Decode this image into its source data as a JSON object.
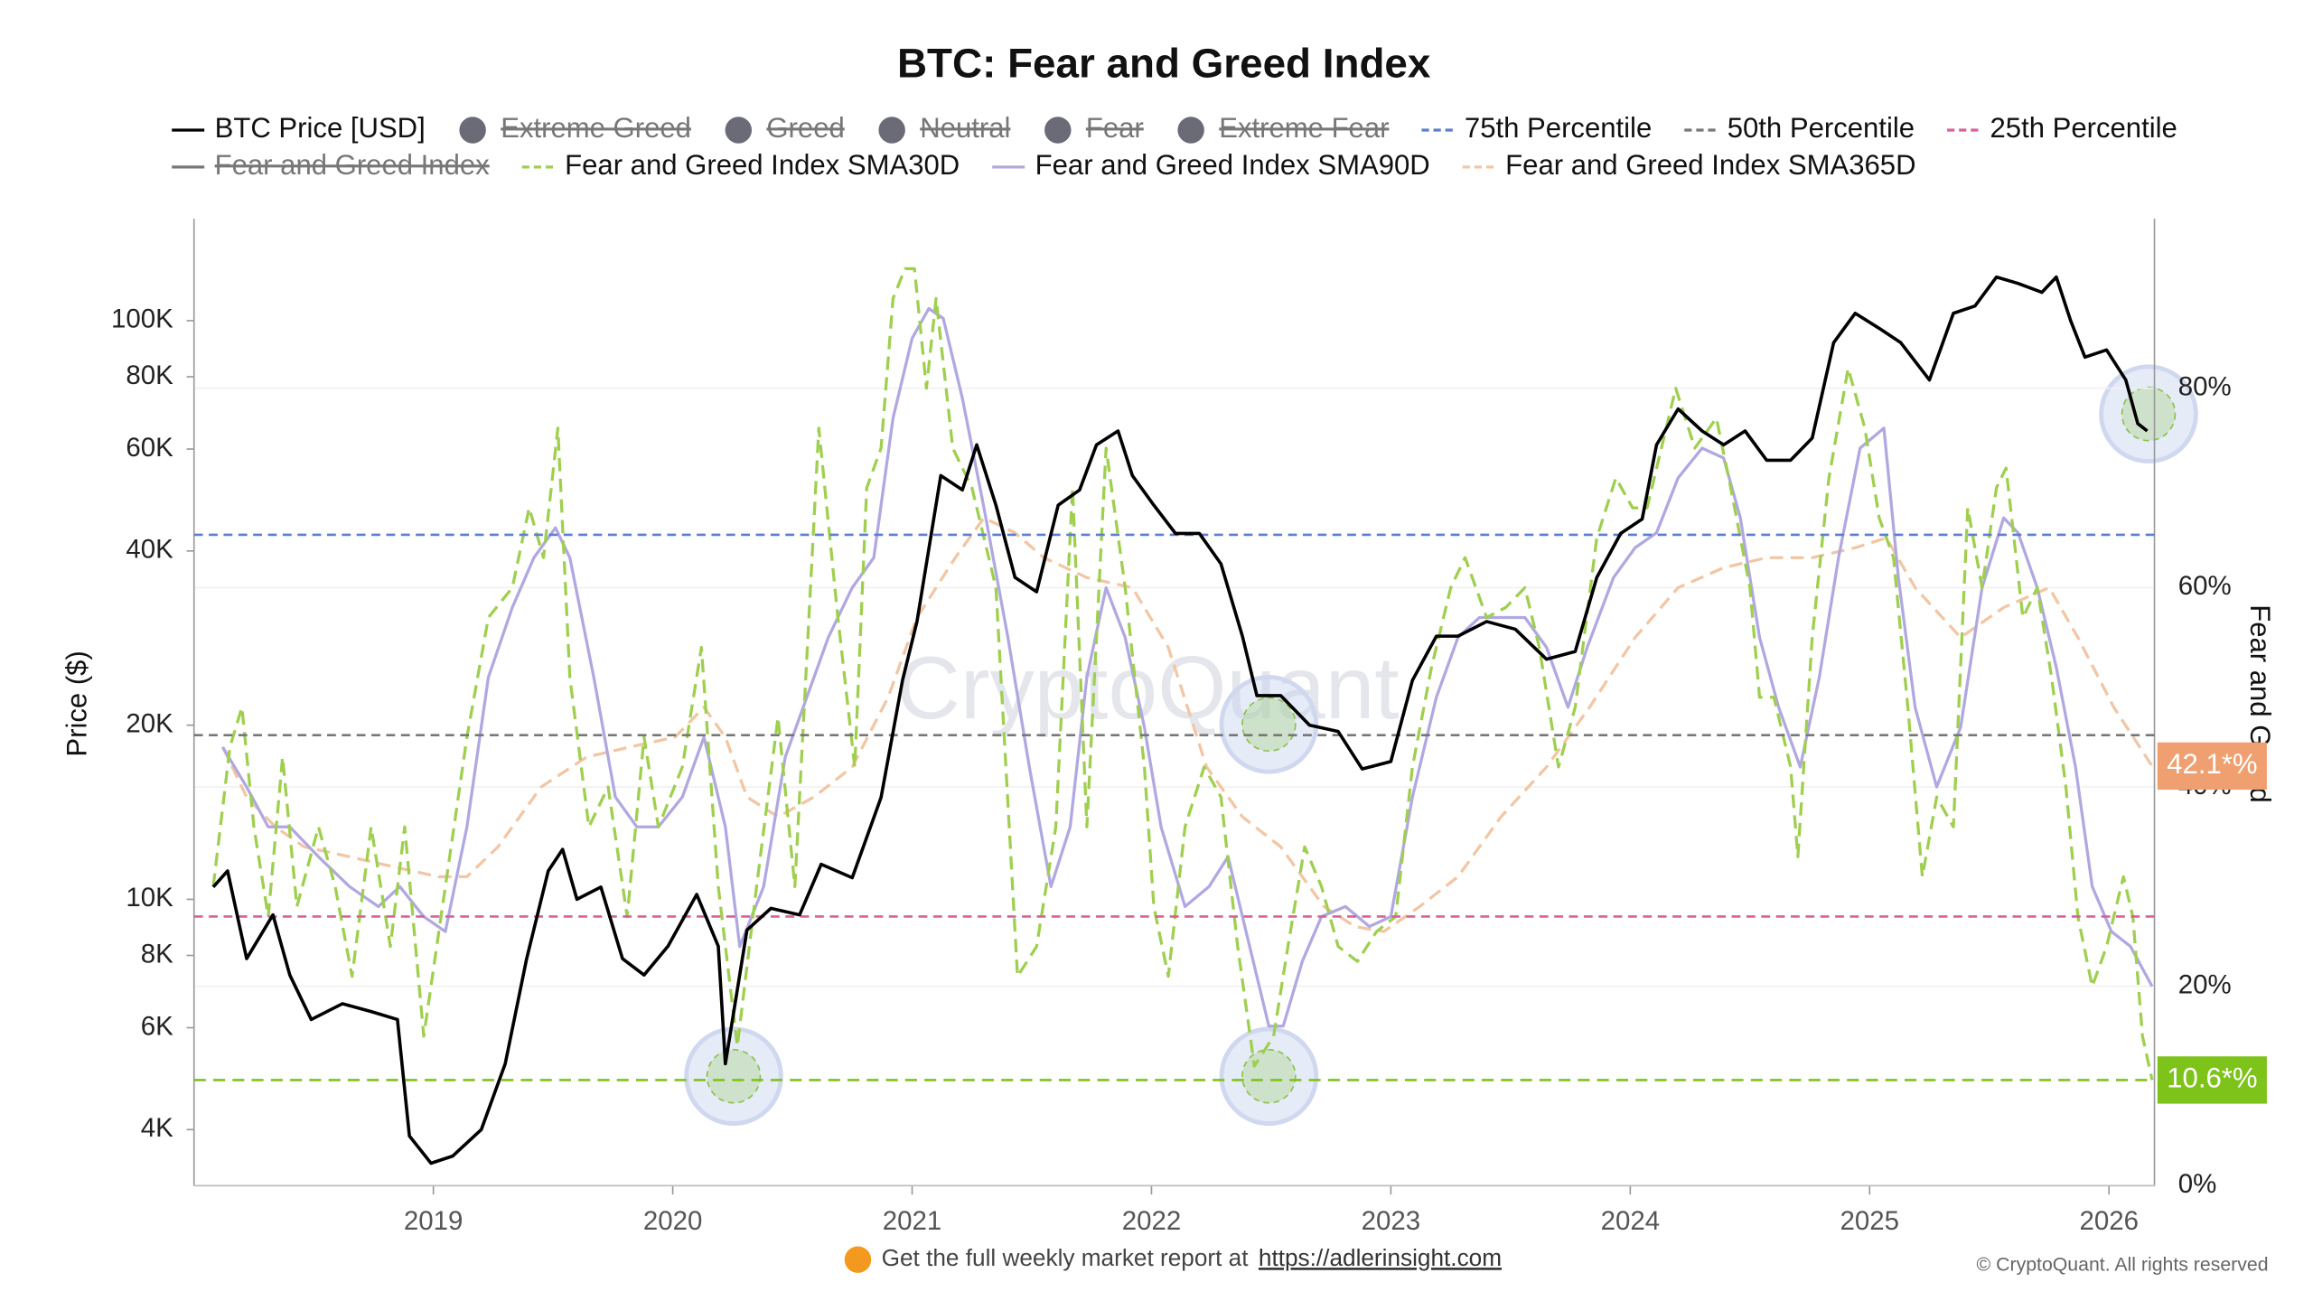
{
  "chart_data": {
    "type": "line",
    "title": "BTC: Fear and Greed Index",
    "y_label": "Price ($)",
    "y2_label": "Fear and Greed",
    "log_y": true,
    "xlim": [
      2018.0,
      2026.19
    ],
    "ylim": [
      3200,
      150000
    ],
    "y2lim": [
      0,
      97
    ],
    "xticks": [
      2019,
      2020,
      2021,
      2022,
      2023,
      2024,
      2025,
      2026
    ],
    "yticks": [
      {
        "value": 4000,
        "label": "4K"
      },
      {
        "value": 6000,
        "label": "6K"
      },
      {
        "value": 8000,
        "label": "8K"
      },
      {
        "value": 10000,
        "label": "10K"
      },
      {
        "value": 20000,
        "label": "20K"
      },
      {
        "value": 40000,
        "label": "40K"
      },
      {
        "value": 60000,
        "label": "60K"
      },
      {
        "value": 80000,
        "label": "80K"
      },
      {
        "value": 100000,
        "label": "100K"
      }
    ],
    "y2ticks": [
      {
        "value": 0,
        "label": "0%"
      },
      {
        "value": 20,
        "label": "20%"
      },
      {
        "value": 40,
        "label": "40%"
      },
      {
        "value": 60,
        "label": "60%"
      },
      {
        "value": 80,
        "label": "80%"
      }
    ],
    "grid": true,
    "series": [
      {
        "name": "BTC Price [USD]",
        "color": "#000000",
        "kind": "line",
        "axis": "y",
        "x": [
          2018.08,
          2018.14,
          2018.22,
          2018.33,
          2018.4,
          2018.49,
          2018.62,
          2018.74,
          2018.85,
          2018.9,
          2018.99,
          2019.08,
          2019.2,
          2019.3,
          2019.39,
          2019.48,
          2019.54,
          2019.6,
          2019.7,
          2019.79,
          2019.88,
          2019.98,
          2020.1,
          2020.19,
          2020.22,
          2020.31,
          2020.41,
          2020.53,
          2020.62,
          2020.75,
          2020.87,
          2020.96,
          2021.02,
          2021.12,
          2021.21,
          2021.27,
          2021.35,
          2021.43,
          2021.52,
          2021.61,
          2021.7,
          2021.77,
          2021.86,
          2021.92,
          2022.01,
          2022.1,
          2022.2,
          2022.29,
          2022.38,
          2022.44,
          2022.54,
          2022.66,
          2022.78,
          2022.88,
          2023.0,
          2023.09,
          2023.19,
          2023.28,
          2023.4,
          2023.52,
          2023.65,
          2023.77,
          2023.86,
          2023.96,
          2024.05,
          2024.11,
          2024.2,
          2024.3,
          2024.39,
          2024.48,
          2024.57,
          2024.67,
          2024.76,
          2024.85,
          2024.94,
          2025.04,
          2025.13,
          2025.25,
          2025.35,
          2025.44,
          2025.53,
          2025.62,
          2025.72,
          2025.78,
          2025.84,
          2025.9,
          2025.99,
          2026.07,
          2026.12,
          2026.16
        ],
        "values": [
          10500,
          11200,
          7900,
          9400,
          7400,
          6200,
          6600,
          6400,
          6200,
          3900,
          3500,
          3600,
          4000,
          5200,
          7900,
          11200,
          12200,
          10000,
          10500,
          7900,
          7400,
          8300,
          10200,
          8300,
          5200,
          8850,
          9650,
          9400,
          11500,
          10900,
          15000,
          23900,
          30200,
          54000,
          51000,
          61000,
          48000,
          36000,
          34000,
          48000,
          51000,
          61000,
          64500,
          54000,
          48000,
          42900,
          42900,
          38000,
          28500,
          22500,
          22500,
          20000,
          19500,
          16800,
          17300,
          23900,
          28500,
          28500,
          30200,
          29300,
          26000,
          26800,
          36000,
          42900,
          45400,
          61000,
          70400,
          64500,
          61000,
          64500,
          57400,
          57400,
          62700,
          91600,
          103000,
          97000,
          91600,
          79000,
          103000,
          106000,
          119000,
          116000,
          112000,
          119000,
          100000,
          86500,
          89000,
          79000,
          66400,
          64500
        ]
      },
      {
        "name": "Extreme Greed",
        "color": "#6b6b78",
        "kind": "dot",
        "hidden": true
      },
      {
        "name": "Greed",
        "color": "#6b6b78",
        "kind": "dot",
        "hidden": true
      },
      {
        "name": "Neutral",
        "color": "#6b6b78",
        "kind": "dot",
        "hidden": true
      },
      {
        "name": "Fear",
        "color": "#6b6b78",
        "kind": "dot",
        "hidden": true
      },
      {
        "name": "Extreme Fear",
        "color": "#6b6b78",
        "kind": "dot",
        "hidden": true
      },
      {
        "name": "75th Percentile",
        "color": "#5b7fd0",
        "kind": "hline",
        "dash": true,
        "axis": "y2",
        "level": 65.3
      },
      {
        "name": "50th Percentile",
        "color": "#777777",
        "kind": "hline",
        "dash": true,
        "axis": "y2",
        "level": 45.2
      },
      {
        "name": "25th Percentile",
        "color": "#d9609a",
        "kind": "hline",
        "dash": true,
        "axis": "y2",
        "level": 27.0
      },
      {
        "name": "Fear and Greed Index",
        "color": "#666666",
        "kind": "line",
        "hidden": true
      },
      {
        "name": "Fear and Greed Index SMA30D",
        "color": "#9fcf4e",
        "kind": "line",
        "dash": true,
        "axis": "y2",
        "x": [
          2018.08,
          2018.15,
          2018.2,
          2018.25,
          2018.31,
          2018.37,
          2018.43,
          2018.52,
          2018.59,
          2018.66,
          2018.74,
          2018.82,
          2018.88,
          2018.96,
          2019.05,
          2019.14,
          2019.23,
          2019.33,
          2019.4,
          2019.46,
          2019.52,
          2019.57,
          2019.65,
          2019.73,
          2019.81,
          2019.88,
          2019.94,
          2020.04,
          2020.12,
          2020.19,
          2020.27,
          2020.35,
          2020.44,
          2020.51,
          2020.61,
          2020.69,
          2020.76,
          2020.81,
          2020.87,
          2020.92,
          2020.97,
          2021.01,
          2021.06,
          2021.1,
          2021.17,
          2021.25,
          2021.35,
          2021.44,
          2021.52,
          2021.6,
          2021.67,
          2021.73,
          2021.81,
          2021.89,
          2021.97,
          2022.01,
          2022.07,
          2022.14,
          2022.22,
          2022.29,
          2022.36,
          2022.43,
          2022.51,
          2022.57,
          2022.64,
          2022.71,
          2022.78,
          2022.86,
          2022.94,
          2023.02,
          2023.09,
          2023.17,
          2023.25,
          2023.31,
          2023.4,
          2023.48,
          2023.56,
          2023.62,
          2023.7,
          2023.77,
          2023.86,
          2023.94,
          2024.01,
          2024.07,
          2024.13,
          2024.19,
          2024.27,
          2024.36,
          2024.42,
          2024.5,
          2024.54,
          2024.6,
          2024.67,
          2024.7,
          2024.76,
          2024.83,
          2024.91,
          2024.98,
          2025.04,
          2025.1,
          2025.16,
          2025.22,
          2025.28,
          2025.35,
          2025.41,
          2025.47,
          2025.53,
          2025.57,
          2025.64,
          2025.7,
          2025.76,
          2025.82,
          2025.87,
          2025.93,
          2025.99,
          2026.06,
          2026.1,
          2026.14,
          2026.18
        ],
        "values": [
          30,
          44,
          48,
          36,
          27,
          43,
          28,
          36,
          30,
          21,
          36,
          24,
          36,
          15,
          30,
          45,
          57,
          60,
          68,
          63,
          76,
          51,
          36,
          40,
          27,
          45,
          36,
          42,
          54,
          30,
          14,
          30,
          47,
          30,
          76,
          57,
          42,
          70,
          74,
          89,
          92,
          92,
          80,
          89,
          74,
          70,
          60,
          21,
          24,
          36,
          70,
          36,
          74,
          60,
          42,
          28,
          21,
          36,
          42,
          39,
          24,
          12,
          15,
          24,
          34,
          30,
          24,
          22.5,
          25.5,
          27,
          42,
          52,
          60,
          63,
          57,
          58,
          60,
          54,
          42,
          48,
          65,
          71,
          68,
          68,
          74,
          80,
          74,
          77,
          70,
          60,
          49,
          49,
          42,
          33,
          55,
          71,
          82,
          76,
          67,
          63,
          48,
          31,
          39,
          36,
          68,
          60,
          70,
          72,
          57,
          60,
          51,
          40,
          27,
          20,
          24,
          31,
          27,
          15,
          10.6
        ]
      },
      {
        "name": "Fear and Greed Index SMA90D",
        "color": "#b0a8e0",
        "kind": "line",
        "axis": "y2",
        "x": [
          2018.12,
          2018.22,
          2018.31,
          2018.4,
          2018.52,
          2018.65,
          2018.77,
          2018.86,
          2018.96,
          2019.05,
          2019.14,
          2019.23,
          2019.33,
          2019.42,
          2019.51,
          2019.57,
          2019.67,
          2019.76,
          2019.85,
          2019.94,
          2020.04,
          2020.13,
          2020.22,
          2020.28,
          2020.38,
          2020.47,
          2020.56,
          2020.65,
          2020.75,
          2020.84,
          2020.92,
          2021.0,
          2021.07,
          2021.13,
          2021.21,
          2021.3,
          2021.4,
          2021.49,
          2021.58,
          2021.66,
          2021.73,
          2021.81,
          2021.89,
          2021.97,
          2022.04,
          2022.14,
          2022.24,
          2022.32,
          2022.41,
          2022.49,
          2022.55,
          2022.63,
          2022.71,
          2022.81,
          2022.91,
          2023.0,
          2023.09,
          2023.19,
          2023.28,
          2023.37,
          2023.46,
          2023.56,
          2023.65,
          2023.74,
          2023.82,
          2023.93,
          2024.02,
          2024.11,
          2024.2,
          2024.3,
          2024.39,
          2024.46,
          2024.54,
          2024.62,
          2024.71,
          2024.79,
          2024.87,
          2024.96,
          2025.06,
          2025.12,
          2025.19,
          2025.28,
          2025.38,
          2025.47,
          2025.56,
          2025.62,
          2025.7,
          2025.78,
          2025.86,
          2025.93,
          2026.01,
          2026.09,
          2026.18
        ],
        "values": [
          44,
          40,
          36,
          36,
          33,
          30,
          28,
          30,
          27,
          25.5,
          36,
          51,
          58,
          63,
          66,
          63,
          51,
          39,
          36,
          36,
          39,
          45,
          36,
          24,
          30,
          43,
          49,
          55,
          60,
          63,
          77,
          85,
          88,
          87,
          79,
          68,
          55,
          42,
          30,
          36,
          51,
          60,
          55,
          46,
          36,
          28,
          30,
          33,
          24,
          16,
          16,
          22.5,
          27,
          28,
          26,
          27,
          39,
          49,
          55,
          57,
          57,
          57,
          54,
          48,
          54,
          61,
          64,
          65.5,
          71,
          74,
          73,
          67,
          55,
          48,
          42,
          51,
          63,
          74,
          76,
          61,
          48,
          40,
          46,
          60,
          67,
          65.5,
          60,
          52,
          42,
          30,
          25.5,
          24,
          20
        ]
      },
      {
        "name": "Fear and Greed Index SMA365D",
        "color": "#f2c6a4",
        "kind": "line",
        "dash": true,
        "axis": "y2",
        "x": [
          2018.12,
          2018.22,
          2018.34,
          2018.46,
          2018.65,
          2018.83,
          2019.02,
          2019.14,
          2019.27,
          2019.45,
          2019.64,
          2019.82,
          2020.01,
          2020.13,
          2020.22,
          2020.31,
          2020.44,
          2020.59,
          2020.75,
          2020.9,
          2021.02,
          2021.18,
          2021.3,
          2021.43,
          2021.55,
          2021.73,
          2021.92,
          2022.07,
          2022.23,
          2022.38,
          2022.54,
          2022.72,
          2022.85,
          2022.97,
          2023.12,
          2023.28,
          2023.46,
          2023.65,
          2023.83,
          2024.02,
          2024.2,
          2024.39,
          2024.57,
          2024.76,
          2024.94,
          2025.07,
          2025.19,
          2025.38,
          2025.56,
          2025.75,
          2025.87,
          2026.02,
          2026.18
        ],
        "values": [
          44,
          39,
          36,
          34,
          33,
          32,
          31,
          31,
          34,
          40,
          43,
          44,
          45,
          48,
          45,
          39,
          37,
          39,
          42,
          49,
          57,
          63,
          67,
          65.5,
          63,
          61,
          60,
          54,
          42,
          37,
          34,
          28,
          26,
          25.5,
          28,
          31,
          37,
          42,
          48,
          55,
          60,
          62,
          63,
          63,
          64,
          65,
          60,
          55,
          58,
          60,
          55,
          48,
          42.1
        ]
      }
    ],
    "annotations": [
      {
        "label": "42.1*%",
        "value": 42.1,
        "color": "#f0a070"
      },
      {
        "label": "10.6*%",
        "value": 10.6,
        "color": "#7ec31a",
        "line": true
      }
    ]
  },
  "watermark": "CryptoQuant",
  "footer": {
    "text": "Get the full weekly market report at",
    "link": "https://adlerinsight.com"
  },
  "copyright": "© CryptoQuant. All rights reserved"
}
